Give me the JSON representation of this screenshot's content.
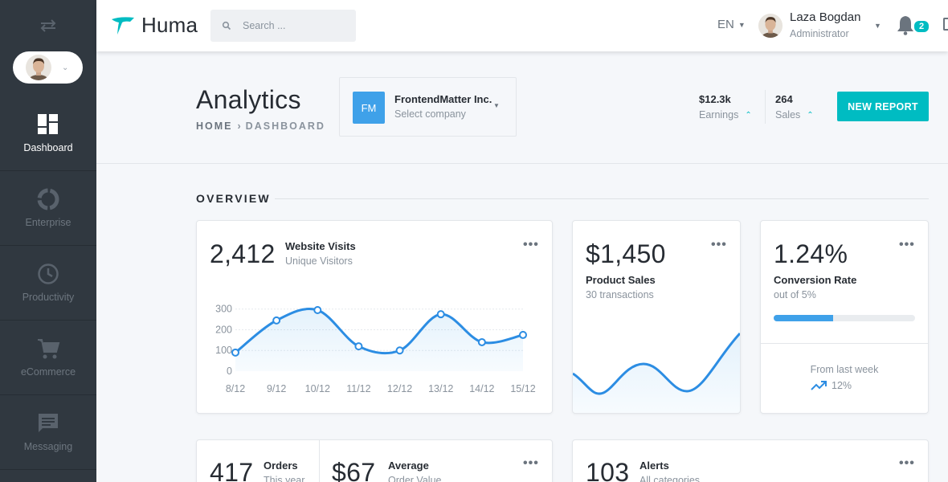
{
  "app": {
    "name": "Huma"
  },
  "search": {
    "placeholder": "Search ..."
  },
  "topbar": {
    "language": "EN",
    "user_name": "Laza Bogdan",
    "user_role": "Administrator",
    "notifications": "2"
  },
  "sidebar": {
    "items": [
      {
        "label": "Dashboard",
        "icon": "dashboard-icon",
        "active": true
      },
      {
        "label": "Enterprise",
        "icon": "enterprise-icon",
        "active": false
      },
      {
        "label": "Productivity",
        "icon": "clock-icon",
        "active": false
      },
      {
        "label": "eCommerce",
        "icon": "cart-icon",
        "active": false
      },
      {
        "label": "Messaging",
        "icon": "message-icon",
        "active": false
      }
    ]
  },
  "page": {
    "title": "Analytics",
    "breadcrumb_home": "HOME",
    "breadcrumb_current": "DASHBOARD"
  },
  "company": {
    "initials": "FM",
    "name": "FrontendMatter Inc.",
    "hint": "Select company"
  },
  "stats": {
    "earnings_value": "$12.3k",
    "earnings_label": "Earnings",
    "sales_value": "264",
    "sales_label": "Sales"
  },
  "actions": {
    "new_report": "NEW REPORT"
  },
  "overview": {
    "title": "OVERVIEW"
  },
  "cards": {
    "visits": {
      "value": "2,412",
      "title": "Website Visits",
      "subtitle": "Unique Visitors"
    },
    "sales": {
      "value": "$1,450",
      "title": "Product Sales",
      "subtitle": "30 transactions"
    },
    "conversion": {
      "value": "1.24%",
      "title": "Conversion Rate",
      "subtitle": "out of 5%",
      "progress": 0.42,
      "footer": "From last week",
      "trend": "12%"
    },
    "orders": {
      "value": "417",
      "title": "Orders",
      "subtitle": "This year"
    },
    "average": {
      "value": "$67",
      "title": "Average",
      "subtitle": "Order Value"
    },
    "alerts": {
      "value": "103",
      "title": "Alerts",
      "subtitle": "All categories"
    }
  },
  "colors": {
    "sidebar": "#303840",
    "accent": "#00bcc2",
    "primary": "#3fa1e9",
    "line": "#2c8de3"
  },
  "chart_data": {
    "type": "area",
    "categories": [
      "8/12",
      "9/12",
      "10/12",
      "11/12",
      "12/12",
      "13/12",
      "14/12",
      "15/12"
    ],
    "values": [
      90,
      245,
      295,
      120,
      100,
      275,
      140,
      175
    ],
    "yticks": [
      "0",
      "100",
      "200",
      "300"
    ],
    "ylim": [
      0,
      330
    ],
    "grid": true,
    "xlabel": "",
    "ylabel": ""
  }
}
